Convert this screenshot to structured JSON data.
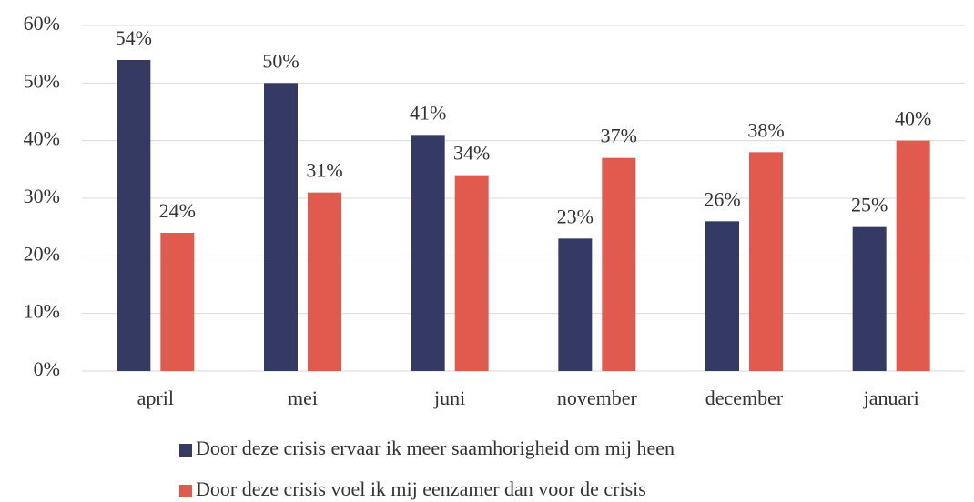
{
  "chart_data": {
    "type": "bar",
    "categories": [
      "april",
      "mei",
      "juni",
      "november",
      "december",
      "januari"
    ],
    "series": [
      {
        "name": "Door deze crisis ervaar ik meer saamhorigheid om mij heen",
        "color": "#353a65",
        "values": [
          54,
          50,
          41,
          23,
          26,
          25
        ],
        "value_labels": [
          "54%",
          "50%",
          "41%",
          "23%",
          "26%",
          "25%"
        ]
      },
      {
        "name": "Door deze crisis voel ik mij eenzamer dan voor de crisis",
        "color": "#e05a4e",
        "values": [
          24,
          31,
          34,
          37,
          38,
          40
        ],
        "value_labels": [
          "24%",
          "31%",
          "34%",
          "37%",
          "38%",
          "40%"
        ]
      }
    ],
    "ylim": [
      0,
      60
    ],
    "yticks": [
      {
        "value": 0,
        "label": "0%"
      },
      {
        "value": 10,
        "label": "10%"
      },
      {
        "value": 20,
        "label": "20%"
      },
      {
        "value": 30,
        "label": "30%"
      },
      {
        "value": 40,
        "label": "40%"
      },
      {
        "value": 50,
        "label": "50%"
      },
      {
        "value": 60,
        "label": "60%"
      }
    ],
    "grid": true,
    "legend": "bottom"
  }
}
